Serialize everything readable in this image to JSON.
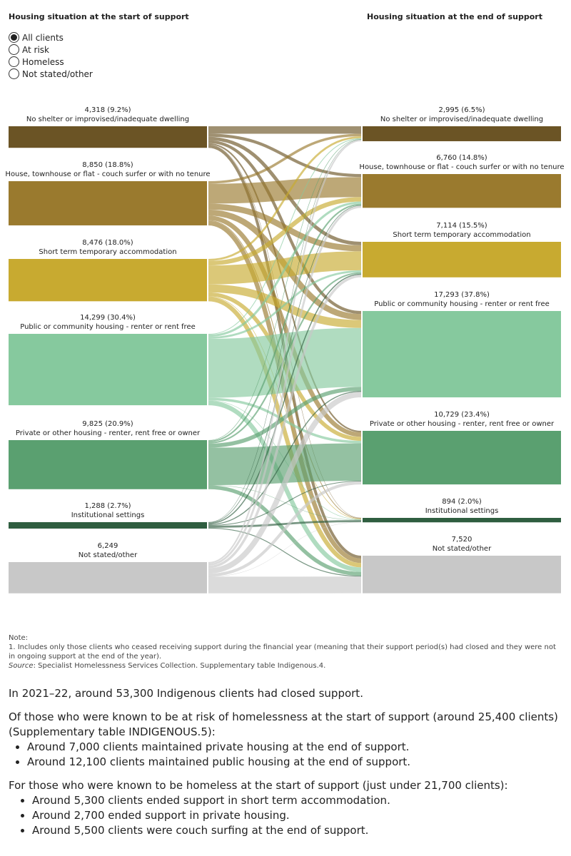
{
  "chart_data": {
    "type": "sankey",
    "left_title": "Housing situation at the start of support",
    "right_title": "Housing situation at the end of support",
    "sources": [
      {
        "label": "No shelter or improvised/inadequate dwelling",
        "value": 4318,
        "value_label": "4,318 (9.2%)",
        "color": "#6b5425"
      },
      {
        "label": "House, townhouse or flat - couch surfer or with no tenure",
        "value": 8850,
        "value_label": "8,850 (18.8%)",
        "color": "#9a7a2e"
      },
      {
        "label": "Short term temporary accommodation",
        "value": 8476,
        "value_label": "8,476 (18.0%)",
        "color": "#c8aa30"
      },
      {
        "label": "Public or community housing - renter or rent free",
        "value": 14299,
        "value_label": "14,299 (30.4%)",
        "color": "#86c99e"
      },
      {
        "label": "Private or other housing - renter, rent free or owner",
        "value": 9825,
        "value_label": "9,825 (20.9%)",
        "color": "#5aa070"
      },
      {
        "label": "Institutional settings",
        "value": 1288,
        "value_label": "1,288 (2.7%)",
        "color": "#2f5e40"
      },
      {
        "label": "Not stated/other",
        "value": 6249,
        "value_label": "6,249",
        "color": "#c8c8c8"
      }
    ],
    "targets": [
      {
        "label": "No shelter or improvised/inadequate dwelling",
        "value": 2995,
        "value_label": "2,995 (6.5%)",
        "color": "#6b5425"
      },
      {
        "label": "House, townhouse or flat - couch surfer or with no tenure",
        "value": 6760,
        "value_label": "6,760 (14.8%)",
        "color": "#9a7a2e"
      },
      {
        "label": "Short term temporary accommodation",
        "value": 7114,
        "value_label": "7,114 (15.5%)",
        "color": "#c8aa30"
      },
      {
        "label": "Public or community housing - renter or rent free",
        "value": 17293,
        "value_label": "17,293 (37.8%)",
        "color": "#86c99e"
      },
      {
        "label": "Private or other housing - renter, rent free or owner",
        "value": 10729,
        "value_label": "10,729 (23.4%)",
        "color": "#5aa070"
      },
      {
        "label": "Institutional settings",
        "value": 894,
        "value_label": "894 (2.0%)",
        "color": "#2f5e40"
      },
      {
        "label": "Not stated/other",
        "value": 7520,
        "value_label": "7,520",
        "color": "#c8c8c8"
      }
    ],
    "flows": [
      [
        1500,
        600,
        700,
        600,
        300,
        50,
        568
      ],
      [
        500,
        4000,
        1200,
        1200,
        900,
        150,
        900
      ],
      [
        400,
        900,
        3800,
        1600,
        800,
        100,
        876
      ],
      [
        150,
        450,
        400,
        11800,
        500,
        100,
        899
      ],
      [
        100,
        300,
        300,
        800,
        7500,
        50,
        775
      ],
      [
        45,
        110,
        214,
        200,
        150,
        400,
        169
      ],
      [
        300,
        400,
        500,
        1093,
        579,
        44,
        3333
      ]
    ]
  },
  "filter": {
    "options": [
      "All clients",
      "At risk",
      "Homeless",
      "Not stated/other"
    ],
    "selected": 0
  },
  "note": {
    "heading": "Note:",
    "item": "1.  Includes only those clients who ceased receiving support during the financial year (meaning that their support period(s) had closed and they were not in ongoing support at the end of the year).",
    "source_label": "Source",
    "source_text": ": Specialist Homelessness Services Collection. Supplementary table Indigenous.4."
  },
  "text": {
    "intro": "In 2021–22, around 53,300 Indigenous clients had closed support.",
    "risk_lead": "Of those who were known to be at risk of homelessness at the start of support (around 25,400 clients) (Supplementary table INDIGENOUS.5):",
    "risk_items": [
      "Around 7,000 clients maintained private housing at the end of support.",
      "Around 12,100 clients maintained public housing at the end of support."
    ],
    "homeless_lead": "For those who were known to be homeless at the start of support (just under 21,700 clients):",
    "homeless_items": [
      "Around 5,300 clients ended support in short term accommodation.",
      "Around 2,700 ended support in private housing.",
      "Around 5,500 clients were couch surfing at the end of support."
    ]
  }
}
